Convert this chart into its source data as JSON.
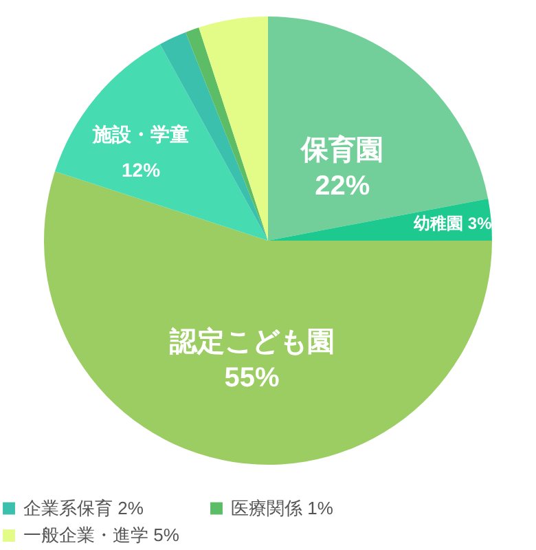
{
  "chart_data": {
    "type": "pie",
    "categories": [
      "保育園",
      "幼稚園",
      "認定こども園",
      "施設・学童",
      "企業系保育",
      "医療関係",
      "一般企業・進学"
    ],
    "values": [
      22,
      3,
      55,
      12,
      2,
      1,
      5
    ],
    "colors": [
      "#72cf9a",
      "#1dc98e",
      "#9ccd62",
      "#46dbb1",
      "#3bc0ad",
      "#5cbd66",
      "#e3fc88"
    ],
    "value_labels": [
      "22%",
      "3%",
      "55%",
      "12%",
      "2%",
      "1%",
      "5%"
    ],
    "legend": "bottom"
  }
}
